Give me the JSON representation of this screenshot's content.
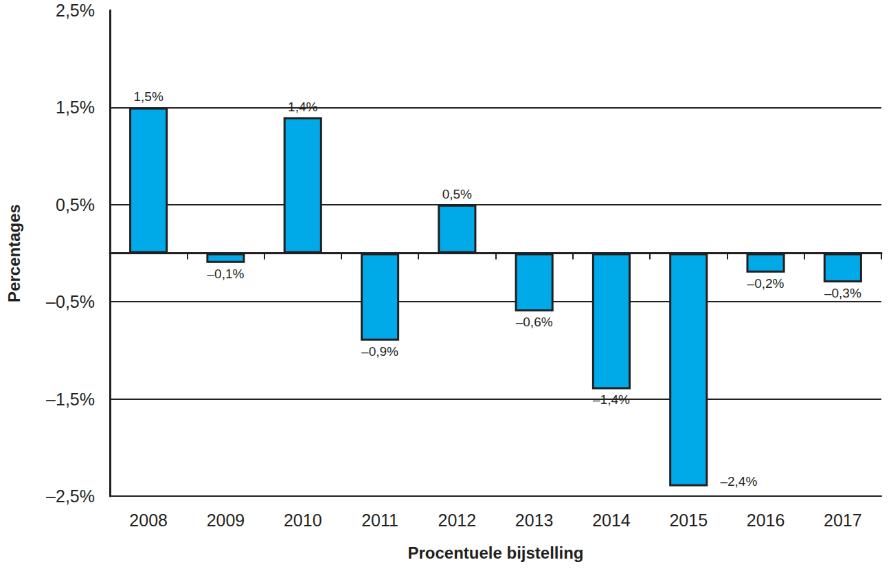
{
  "chart_data": {
    "type": "bar",
    "x_label": "Procentuele bijstelling",
    "y_label": "Percentages",
    "categories": [
      "2008",
      "2009",
      "2010",
      "2011",
      "2012",
      "2013",
      "2014",
      "2015",
      "2016",
      "2017"
    ],
    "values": [
      1.5,
      -0.1,
      1.4,
      -0.9,
      0.5,
      -0.6,
      -1.4,
      -2.4,
      -0.2,
      -0.3
    ],
    "value_labels": [
      "1,5%",
      "–0,1%",
      "1,4%",
      "–0,9%",
      "0,5%",
      "–0,6%",
      "–1,4%",
      "–2,4%",
      "–0,2%",
      "–0,3%"
    ],
    "color": "#00a9e8",
    "ylim": [
      -2.5,
      2.5
    ],
    "yticks": [
      {
        "value": -2.5,
        "label": "–2,5%"
      },
      {
        "value": -1.5,
        "label": "–1,5%"
      },
      {
        "value": -0.5,
        "label": "–0,5%"
      },
      {
        "value": 0.5,
        "label": "0,5%"
      },
      {
        "value": 1.5,
        "label": "1,5%"
      },
      {
        "value": 2.5,
        "label": "2,5%"
      }
    ],
    "grid": true,
    "data_labels": true
  }
}
